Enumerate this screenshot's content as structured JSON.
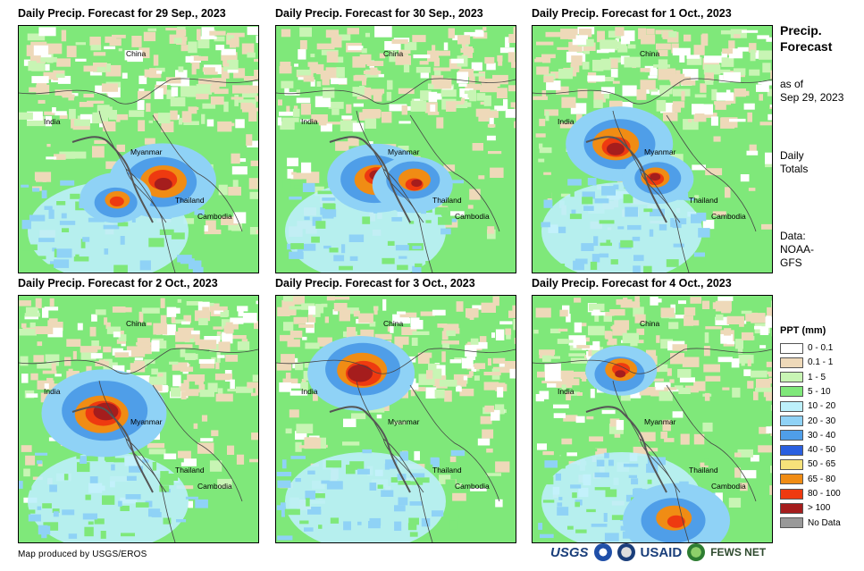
{
  "panels": [
    {
      "title": "Daily Precip. Forecast for 29 Sep., 2023"
    },
    {
      "title": "Daily Precip. Forecast for 30 Sep., 2023"
    },
    {
      "title": "Daily Precip. Forecast for 1 Oct., 2023"
    },
    {
      "title": "Daily Precip. Forecast for 2 Oct., 2023"
    },
    {
      "title": "Daily Precip. Forecast for 3 Oct., 2023"
    },
    {
      "title": "Daily Precip. Forecast for 4 Oct., 2023"
    }
  ],
  "place_labels": {
    "china": "China",
    "india": "India",
    "myanmar": "Myanmar",
    "thailand": "Thailand",
    "cambodia": "Cambodia"
  },
  "side": {
    "title_line1": "Precip.",
    "title_line2": "Forecast",
    "asof_line1": "as of",
    "asof_line2": "Sep 29, 2023",
    "totals_line1": "Daily",
    "totals_line2": "Totals",
    "data_line1": "Data:",
    "data_line2": "NOAA-",
    "data_line3": "GFS"
  },
  "legend": {
    "title": "PPT (mm)",
    "items": [
      {
        "label": "0 - 0.1",
        "color": "#ffffff"
      },
      {
        "label": "0.1 - 1",
        "color": "#eed9b9"
      },
      {
        "label": "1 - 5",
        "color": "#c8f5b4"
      },
      {
        "label": "5 - 10",
        "color": "#7fe87a"
      },
      {
        "label": "10 - 20",
        "color": "#bdf0fb"
      },
      {
        "label": "20 - 30",
        "color": "#8fd2f6"
      },
      {
        "label": "30 - 40",
        "color": "#4f9ee8"
      },
      {
        "label": "40 - 50",
        "color": "#2a5fe0"
      },
      {
        "label": "50 - 65",
        "color": "#f7e27a"
      },
      {
        "label": "65 - 80",
        "color": "#f08c14"
      },
      {
        "label": "80 - 100",
        "color": "#ee3a10"
      },
      {
        "label": "> 100",
        "color": "#a51d1d"
      },
      {
        "label": "No Data",
        "color": "#999999"
      }
    ]
  },
  "credit": "Map produced by USGS/EROS",
  "logos": {
    "usgs": "USGS",
    "usaid": "USAID",
    "fews": "FEWS NET"
  }
}
